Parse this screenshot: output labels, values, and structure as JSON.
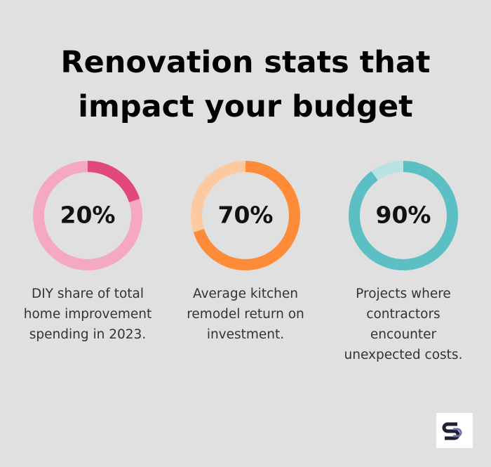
{
  "title": "Renovation stats that impact your budget",
  "chart_data": [
    {
      "type": "donut",
      "values": [
        20
      ],
      "value_labels": [
        "20%"
      ],
      "max": 100,
      "caption": "DIY share of total home improvement spending in 2023.",
      "color": "#e2487a",
      "track_color": "#f4a8c1"
    },
    {
      "type": "donut",
      "values": [
        70
      ],
      "value_labels": [
        "70%"
      ],
      "max": 100,
      "caption": "Average kitchen remodel return on investment.",
      "color": "#fd8b38",
      "track_color": "#fdcaa0"
    },
    {
      "type": "donut",
      "values": [
        90
      ],
      "value_labels": [
        "90%"
      ],
      "max": 100,
      "caption": "Projects where contractors encounter unexpected costs.",
      "color": "#5bbfc4",
      "track_color": "#b8e3e6"
    }
  ]
}
